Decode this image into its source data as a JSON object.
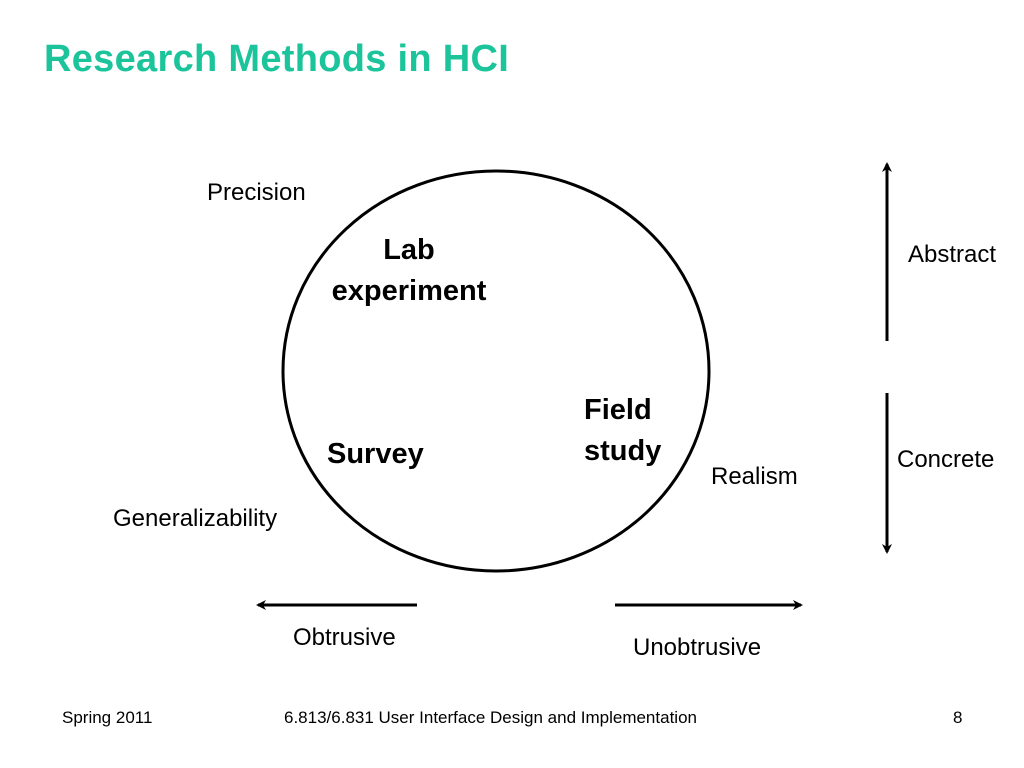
{
  "slide": {
    "title": "Research Methods in HCI",
    "title_color": "#1BC49A"
  },
  "diagram": {
    "methods": {
      "lab": [
        "Lab",
        "experiment"
      ],
      "survey": "Survey",
      "field": [
        "Field",
        "study"
      ]
    },
    "labels": {
      "precision": "Precision",
      "generalizability": "Generalizability",
      "realism": "Realism",
      "abstract": "Abstract",
      "concrete": "Concrete",
      "obtrusive": "Obtrusive",
      "unobtrusive": "Unobtrusive"
    },
    "line_color": "#000000"
  },
  "footer": {
    "term": "Spring 2011",
    "course": "6.813/6.831 User Interface Design and Implementation",
    "page_number": "8"
  }
}
